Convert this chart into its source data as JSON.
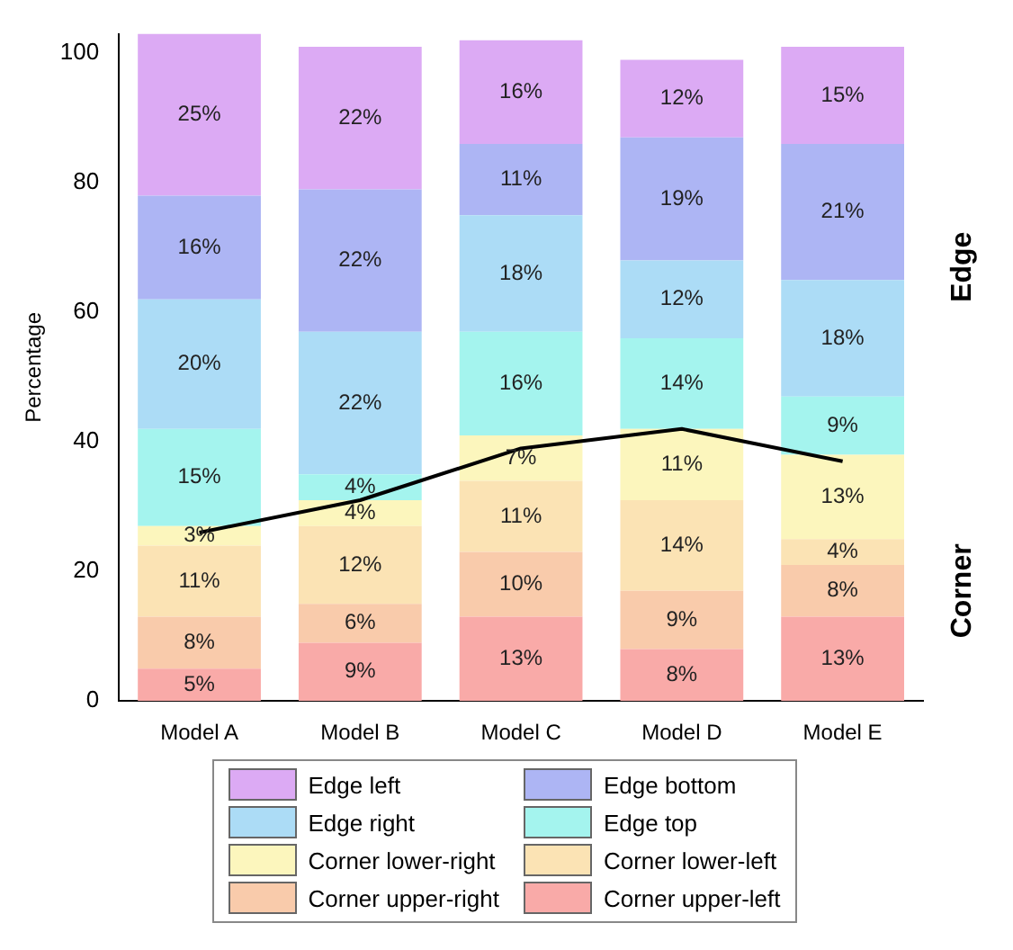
{
  "chart_data": {
    "type": "bar",
    "stacked": true,
    "ylabel": "Percentage",
    "categories": [
      "Model A",
      "Model B",
      "Model C",
      "Model D",
      "Model E"
    ],
    "ylim": [
      0,
      103
    ],
    "yticks": [
      0,
      20,
      40,
      60,
      80,
      100
    ],
    "legend": "bottom",
    "grid": false,
    "annotations": [
      "Edge",
      "Corner"
    ],
    "series": [
      {
        "name": "Corner upper-left",
        "color": "#f9aaa8",
        "values": [
          5,
          9,
          13,
          8,
          13
        ],
        "value_labels": [
          "5%",
          "9%",
          "13%",
          "8%",
          "13%"
        ]
      },
      {
        "name": "Corner upper-right",
        "color": "#f9cbab",
        "values": [
          8,
          6,
          10,
          9,
          8
        ],
        "value_labels": [
          "8%",
          "6%",
          "10%",
          "9%",
          "8%"
        ]
      },
      {
        "name": "Corner lower-left",
        "color": "#fbe3b4",
        "values": [
          11,
          12,
          11,
          14,
          4
        ],
        "value_labels": [
          "11%",
          "12%",
          "11%",
          "14%",
          "4%"
        ]
      },
      {
        "name": "Corner lower-right",
        "color": "#fcf6bd",
        "values": [
          3,
          4,
          7,
          11,
          13
        ],
        "value_labels": [
          "3%",
          "4%",
          "7%",
          "11%",
          "13%"
        ]
      },
      {
        "name": "Edge top",
        "color": "#a4f4ee",
        "values": [
          15,
          4,
          16,
          14,
          9
        ],
        "value_labels": [
          "15%",
          "4%",
          "16%",
          "14%",
          "9%"
        ]
      },
      {
        "name": "Edge right",
        "color": "#acdcf6",
        "values": [
          20,
          22,
          18,
          12,
          18
        ],
        "value_labels": [
          "20%",
          "22%",
          "18%",
          "12%",
          "18%"
        ]
      },
      {
        "name": "Edge bottom",
        "color": "#adb5f4",
        "values": [
          16,
          22,
          11,
          19,
          21
        ],
        "value_labels": [
          "16%",
          "22%",
          "11%",
          "19%",
          "21%"
        ]
      },
      {
        "name": "Edge left",
        "color": "#dcaaf4",
        "values": [
          25,
          22,
          16,
          12,
          15
        ],
        "value_labels": [
          "25%",
          "22%",
          "16%",
          "12%",
          "15%"
        ]
      },
      {
        "type": "line",
        "color": "#000000",
        "marker": "none",
        "values": [
          26,
          31,
          39,
          42,
          37
        ]
      }
    ]
  }
}
